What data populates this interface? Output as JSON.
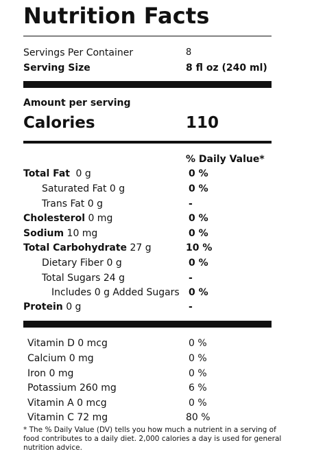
{
  "title": "Nutrition Facts",
  "servings": {
    "label": "Servings Per Container",
    "value": "8"
  },
  "serving_size": {
    "label": "Serving Size",
    "value": "8 fl oz (240 ml)"
  },
  "amount_per_serving": "Amount per serving",
  "calories": {
    "label": "Calories",
    "value": "110"
  },
  "dv_header": "% Daily Value*",
  "nutrients": [
    {
      "label": "Total Fat",
      "amount": "0 g",
      "dv": "0 %"
    },
    {
      "label": "Saturated Fat 0 g",
      "amount": "",
      "dv": "0 %"
    },
    {
      "label": "Trans Fat 0 g",
      "amount": "",
      "dv": "-"
    },
    {
      "label": "Cholesterol",
      "amount": "0 mg",
      "dv": "0 %"
    },
    {
      "label": "Sodium",
      "amount": "10 mg",
      "dv": "0 %"
    },
    {
      "label": "Total Carbohydrate",
      "amount": "27 g",
      "dv": "10 %"
    },
    {
      "label": "Dietary Fiber 0 g",
      "amount": "",
      "dv": "0 %"
    },
    {
      "label": "Total Sugars 24 g",
      "amount": "",
      "dv": "-"
    },
    {
      "label": "Includes 0 g Added Sugars",
      "amount": "",
      "dv": "0 %"
    },
    {
      "label": "Protein",
      "amount": "0 g",
      "dv": "-"
    }
  ],
  "vitamins": [
    {
      "label": "Vitamin D 0 mcg",
      "dv": "0 %"
    },
    {
      "label": "Calcium 0 mg",
      "dv": "0 %"
    },
    {
      "label": "Iron 0 mg",
      "dv": "0 %"
    },
    {
      "label": "Potassium 260 mg",
      "dv": "6 %"
    },
    {
      "label": "Vitamin A 0 mcg",
      "dv": "0 %"
    },
    {
      "label": "Vitamin C 72 mg",
      "dv": "80 %"
    }
  ],
  "footnote": "* The % Daily Value (DV) tells you how much a nutrient in a serving of food contributes to a daily diet. 2,000 calories a day is used for general nutrition advice."
}
